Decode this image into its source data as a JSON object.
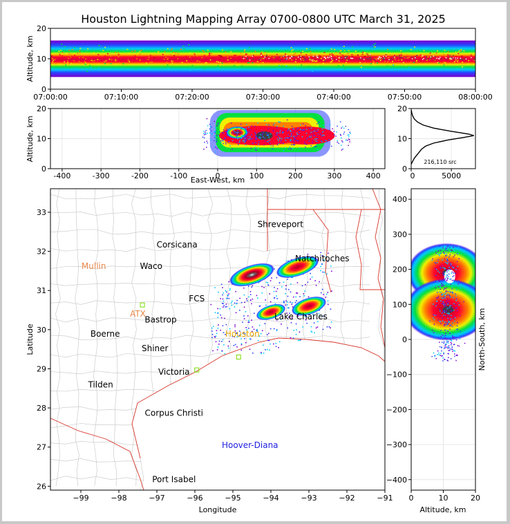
{
  "title": "Houston Lightning Mapping Array 0700-0800 UTC March 31, 2025",
  "colors": {
    "axis": "#000000",
    "border": "#d8362b",
    "county": "#bfbfbf",
    "grid": "#e6e6e6"
  },
  "chart_data": [
    {
      "type": "heatmap",
      "panel": "time-altitude",
      "xlabel": "",
      "ylabel": "Altitude, km",
      "xlim": [
        "07:00:00",
        "08:00:00"
      ],
      "ylim": [
        0,
        20
      ],
      "xticks": [
        "07:00:00",
        "07:10:00",
        "07:20:00",
        "07:30:00",
        "07:40:00",
        "07:50:00",
        "08:00:00"
      ],
      "yticks": [
        0,
        10,
        20
      ],
      "density_profile": {
        "altitude_km": [
          2,
          4,
          6,
          8,
          9,
          10,
          11,
          12,
          13,
          14,
          16,
          18,
          20
        ],
        "relative_density": [
          0.05,
          0.15,
          0.35,
          0.6,
          0.8,
          0.95,
          1.0,
          0.85,
          0.6,
          0.4,
          0.2,
          0.08,
          0.02
        ]
      }
    },
    {
      "type": "heatmap",
      "panel": "east-west-altitude",
      "xlabel": "East-West, km",
      "ylabel": "Altitude, km",
      "xlim": [
        -430,
        430
      ],
      "ylim": [
        0,
        20
      ],
      "xticks": [
        -400,
        -300,
        -200,
        -100,
        0,
        100,
        200,
        300,
        400
      ],
      "yticks": [
        0,
        10,
        20
      ],
      "source_range_km": [
        -40,
        300
      ],
      "peak_altitude_km": 11
    },
    {
      "type": "line",
      "panel": "altitude-histogram",
      "xlabel": "",
      "ylabel": "",
      "xlim": [
        0,
        8000
      ],
      "ylim": [
        0,
        20
      ],
      "xticks": [
        0,
        5000
      ],
      "yticks": [
        0,
        10,
        20
      ],
      "annotation": "216,110 src",
      "altitude_km": [
        1.5,
        2.5,
        3.5,
        4.5,
        5.5,
        6.5,
        7.5,
        8.5,
        9.5,
        10.5,
        11.0,
        11.5,
        12.5,
        13.5,
        14.5,
        15.5,
        16.5,
        17.5,
        18.5,
        19.5
      ],
      "count": [
        0,
        200,
        400,
        700,
        1000,
        1300,
        1800,
        2800,
        4500,
        6800,
        7800,
        7200,
        4800,
        2800,
        1500,
        800,
        400,
        200,
        80,
        20
      ]
    },
    {
      "type": "scatter",
      "panel": "plan-view-map",
      "xlabel": "Longitude",
      "ylabel": "Latitude",
      "xlim": [
        -99.8,
        -91
      ],
      "ylim": [
        25.9,
        33.6
      ],
      "xticks": [
        -99,
        -98,
        -97,
        -96,
        -95,
        -94,
        -93,
        -92,
        -91
      ],
      "yticks": [
        26,
        27,
        28,
        29,
        30,
        31,
        32,
        33
      ],
      "storm_cells": [
        {
          "lon": -94.5,
          "lat": 31.4
        },
        {
          "lon": -93.3,
          "lat": 31.6
        },
        {
          "lon": -94.0,
          "lat": 30.45
        },
        {
          "lon": -93.0,
          "lat": 30.6
        }
      ],
      "cities": [
        {
          "name": "Shreveport",
          "lon": -93.75,
          "lat": 32.62,
          "color": "#000000"
        },
        {
          "name": "Corsicana",
          "lon": -96.47,
          "lat": 32.1,
          "color": "#000000"
        },
        {
          "name": "Mullin",
          "lon": -98.66,
          "lat": 31.55,
          "color": "#e8884a"
        },
        {
          "name": "Waco",
          "lon": -97.15,
          "lat": 31.55,
          "color": "#000000"
        },
        {
          "name": "Natchitoches",
          "lon": -92.65,
          "lat": 31.75,
          "color": "#000000"
        },
        {
          "name": "Lake Charles",
          "lon": -93.21,
          "lat": 30.26,
          "color": "#000000"
        },
        {
          "name": "ATX",
          "lon": -97.5,
          "lat": 30.33,
          "color": "#e8884a"
        },
        {
          "name": "Bastrop",
          "lon": -96.9,
          "lat": 30.18,
          "color": "#000000"
        },
        {
          "name": "Boerne",
          "lon": -98.36,
          "lat": 29.82,
          "color": "#000000"
        },
        {
          "name": "Shiner",
          "lon": -97.05,
          "lat": 29.45,
          "color": "#000000"
        },
        {
          "name": "Victoria",
          "lon": -96.55,
          "lat": 28.85,
          "color": "#000000"
        },
        {
          "name": "Tilden",
          "lon": -98.48,
          "lat": 28.52,
          "color": "#000000"
        },
        {
          "name": "Corpus Christi",
          "lon": -96.55,
          "lat": 27.8,
          "color": "#000000"
        },
        {
          "name": "Hoover-Diana",
          "lon": -94.55,
          "lat": 26.98,
          "color": "#2020e0"
        },
        {
          "name": "Port Isabel",
          "lon": -96.55,
          "lat": 26.1,
          "color": "#000000"
        },
        {
          "name": "FCS",
          "lon": -95.95,
          "lat": 30.72,
          "color": "#000000"
        },
        {
          "name": "Houston",
          "lon": -94.75,
          "lat": 29.82,
          "color": "#e8a800"
        }
      ]
    },
    {
      "type": "heatmap",
      "panel": "altitude-north-south",
      "xlabel": "Altitude, km",
      "ylabel": "North-South, km",
      "xlim": [
        0,
        20
      ],
      "ylim": [
        -430,
        430
      ],
      "xticks": [
        0,
        10,
        20
      ],
      "yticks": [
        -400,
        -300,
        -200,
        -100,
        0,
        100,
        200,
        300,
        400
      ]
    }
  ]
}
